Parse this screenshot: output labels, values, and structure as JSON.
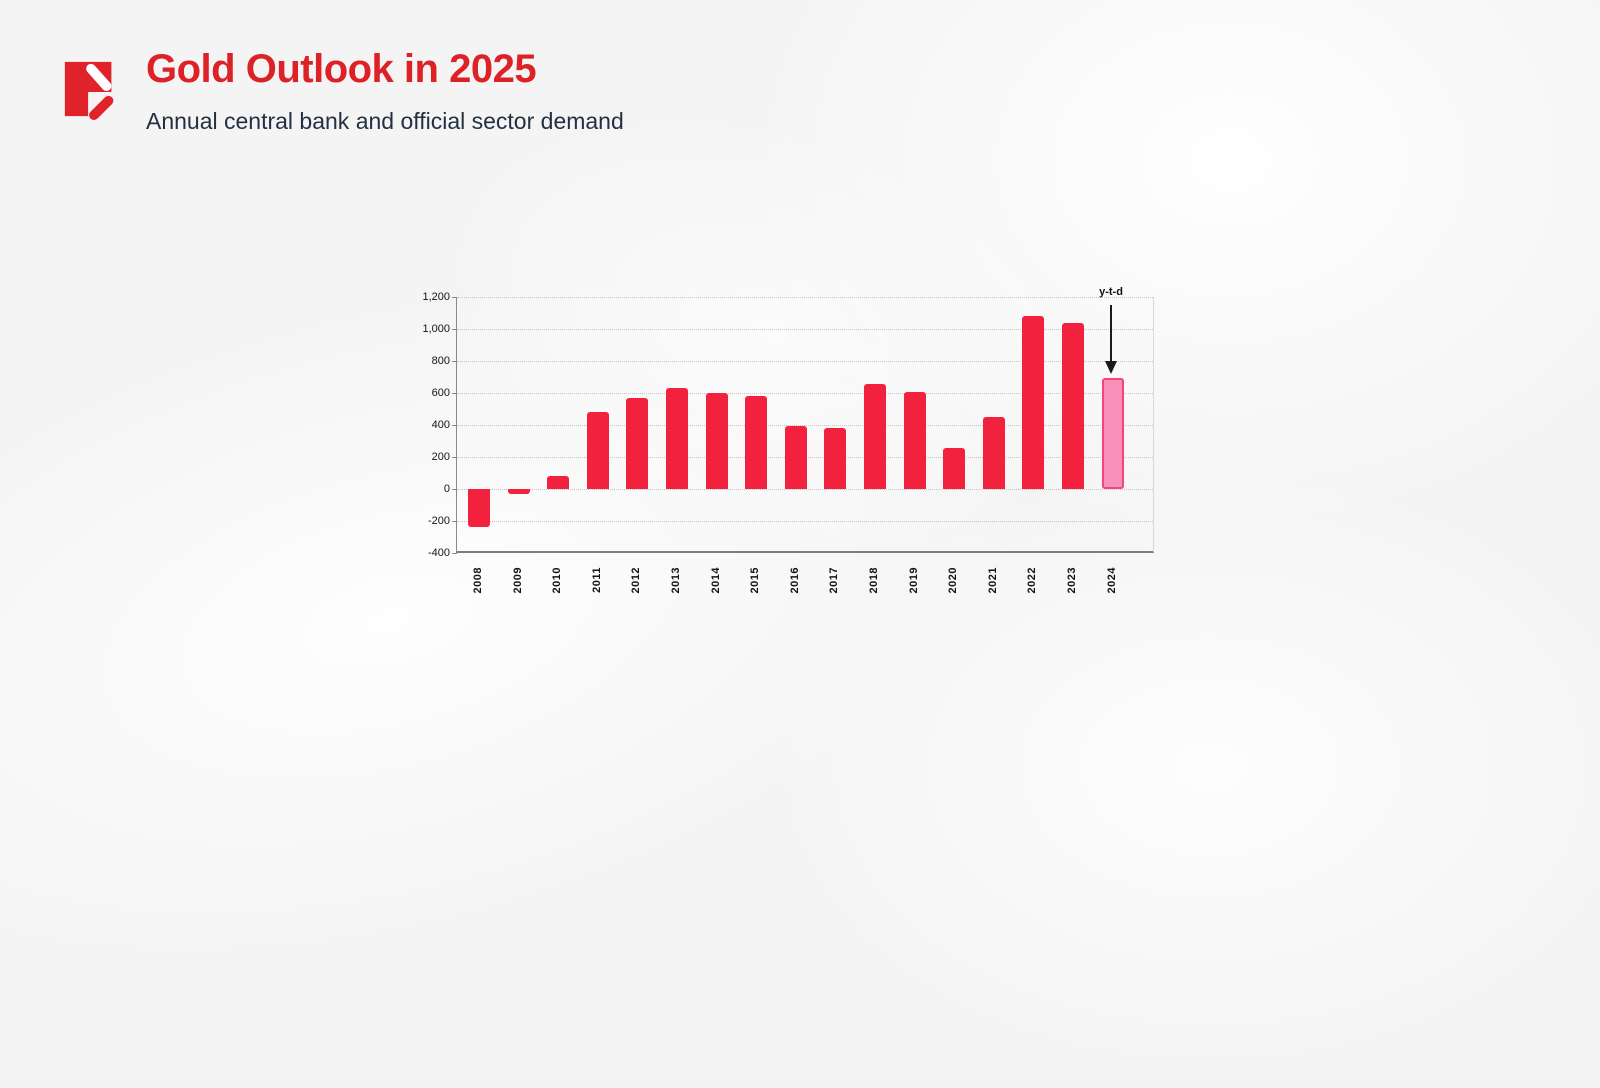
{
  "header": {
    "title": "Gold Outlook in 2025",
    "subtitle": "Annual central bank and official sector demand",
    "logo_color": "#e0222b"
  },
  "chart_data": {
    "type": "bar",
    "title": "Annual central bank and official sector demand",
    "categories": [
      "2008",
      "2009",
      "2010",
      "2011",
      "2012",
      "2013",
      "2014",
      "2015",
      "2016",
      "2017",
      "2018",
      "2019",
      "2020",
      "2021",
      "2022",
      "2023",
      "2024"
    ],
    "values": [
      -235,
      -34,
      79,
      481,
      569,
      629,
      601,
      580,
      395,
      379,
      656,
      605,
      255,
      450,
      1082,
      1037,
      694
    ],
    "xlabel": "",
    "ylabel": "",
    "ylim": [
      -400,
      1200
    ],
    "yticks": [
      1200,
      1000,
      800,
      600,
      400,
      200,
      0,
      -200,
      -400
    ],
    "ytick_labels": [
      "1,200",
      "1,000",
      "800",
      "600",
      "400",
      "200",
      "0",
      "-200",
      "-400"
    ],
    "grid": true,
    "legend": "none",
    "bar_color": "#f2213d",
    "highlight_index": 16,
    "highlight_fill": "#f990ba",
    "highlight_border": "#f5437e",
    "annotation": {
      "label": "y-t-d",
      "target": "2024"
    }
  }
}
